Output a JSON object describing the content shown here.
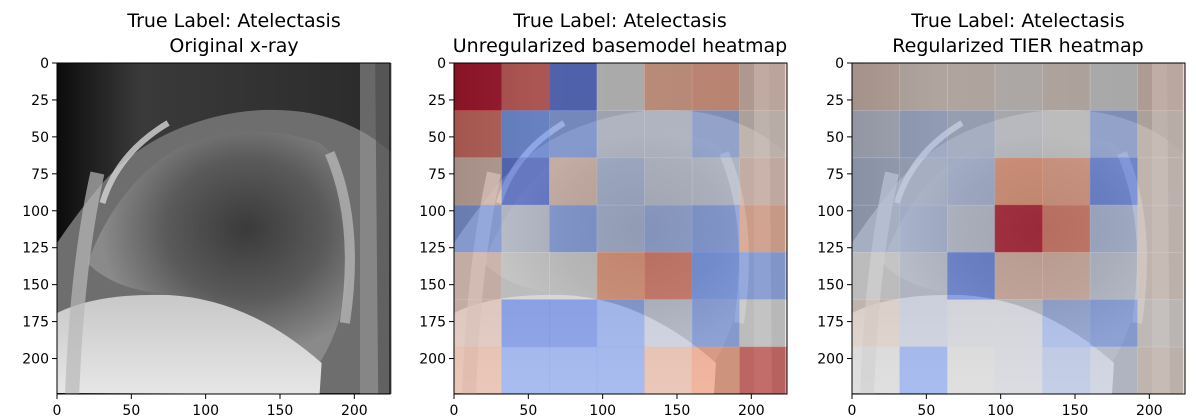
{
  "chart_data": [
    {
      "type": "heatmap",
      "title": "True Label: Atelectasis",
      "subtitle": "Original x-ray",
      "xlim": [
        0,
        224
      ],
      "ylim": [
        0,
        224
      ],
      "xticks": [
        "0",
        "50",
        "100",
        "150",
        "200"
      ],
      "yticks": [
        "0",
        "25",
        "50",
        "75",
        "100",
        "125",
        "150",
        "175",
        "200"
      ],
      "overlay": null
    },
    {
      "type": "heatmap",
      "title": "True Label: Atelectasis",
      "subtitle": "Unregularized basemodel heatmap",
      "xlim": [
        0,
        224
      ],
      "ylim": [
        0,
        224
      ],
      "xticks": [
        "0",
        "50",
        "100",
        "150",
        "200"
      ],
      "yticks": [
        "0",
        "25",
        "50",
        "75",
        "100",
        "125",
        "150",
        "175",
        "200"
      ],
      "colormap": "coolwarm",
      "grid_size": 7,
      "overlay": [
        [
          0.97,
          0.85,
          0.12,
          0.5,
          0.7,
          0.72,
          0.6
        ],
        [
          0.82,
          0.25,
          0.3,
          0.45,
          0.45,
          0.35,
          0.55
        ],
        [
          0.6,
          0.15,
          0.6,
          0.4,
          0.45,
          0.45,
          0.6
        ],
        [
          0.3,
          0.45,
          0.3,
          0.4,
          0.35,
          0.3,
          0.7
        ],
        [
          0.6,
          0.5,
          0.5,
          0.75,
          0.8,
          0.25,
          0.3
        ],
        [
          0.6,
          0.2,
          0.2,
          0.3,
          0.45,
          0.3,
          0.5
        ],
        [
          0.65,
          0.3,
          0.3,
          0.3,
          0.65,
          0.75,
          0.85
        ]
      ]
    },
    {
      "type": "heatmap",
      "title": "True Label: Atelectasis",
      "subtitle": "Regularized TIER heatmap",
      "xlim": [
        0,
        224
      ],
      "ylim": [
        0,
        224
      ],
      "xticks": [
        "0",
        "50",
        "100",
        "150",
        "200"
      ],
      "yticks": [
        "0",
        "25",
        "50",
        "75",
        "100",
        "125",
        "150",
        "175",
        "200"
      ],
      "colormap": "coolwarm",
      "grid_size": 7,
      "overlay": [
        [
          0.58,
          0.55,
          0.55,
          0.52,
          0.55,
          0.5,
          0.58
        ],
        [
          0.45,
          0.4,
          0.42,
          0.48,
          0.5,
          0.35,
          0.55
        ],
        [
          0.42,
          0.42,
          0.4,
          0.75,
          0.72,
          0.2,
          0.55
        ],
        [
          0.42,
          0.4,
          0.45,
          0.95,
          0.8,
          0.4,
          0.55
        ],
        [
          0.5,
          0.45,
          0.2,
          0.62,
          0.62,
          0.45,
          0.55
        ],
        [
          0.55,
          0.45,
          0.48,
          0.48,
          0.35,
          0.3,
          0.52
        ],
        [
          0.5,
          0.3,
          0.5,
          0.48,
          0.4,
          0.45,
          0.55
        ]
      ]
    }
  ]
}
